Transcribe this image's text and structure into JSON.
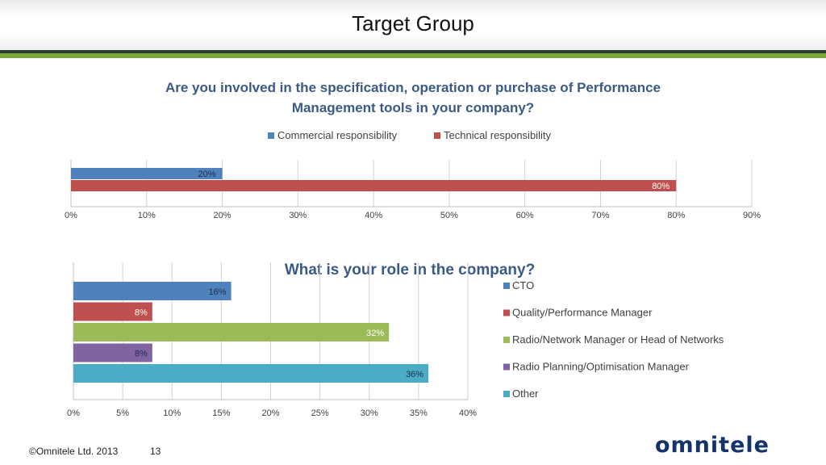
{
  "header": {
    "title": "Target Group"
  },
  "footer": {
    "copyright": "©Omnitele Ltd. 2013",
    "page_number": "13"
  },
  "logo": {
    "text": "omnitele",
    "color": "#14336b"
  },
  "chart_data": [
    {
      "type": "bar",
      "orientation": "horizontal",
      "title": "Are you involved in the specification, operation or purchase of Performance Management tools in your company?",
      "title_lines": [
        "Are you involved in the specification, operation or purchase of Performance",
        "Management tools in your company?"
      ],
      "series": [
        {
          "name": "Commercial responsibility",
          "values": [
            20
          ],
          "labels": [
            "20%"
          ],
          "color": "#4f81bd"
        },
        {
          "name": "Technical responsibility",
          "values": [
            80
          ],
          "labels": [
            "80%"
          ],
          "color": "#c0504d"
        }
      ],
      "xlim": [
        0,
        90
      ],
      "xticks": [
        "0%",
        "10%",
        "20%",
        "30%",
        "40%",
        "50%",
        "60%",
        "70%",
        "80%",
        "90%"
      ],
      "grid": true,
      "legend_position": "top"
    },
    {
      "type": "bar",
      "orientation": "horizontal",
      "title": "What is your role in the company?",
      "categories": [
        "CTO",
        "Quality/Performance Manager",
        "Radio/Network Manager or Head of Networks",
        "Radio Planning/Optimisation Manager",
        "Other"
      ],
      "values": [
        16,
        8,
        32,
        8,
        36
      ],
      "labels": [
        "16%",
        "8%",
        "32%",
        "8%",
        "36%"
      ],
      "colors": [
        "#4f81bd",
        "#c0504d",
        "#9bbb59",
        "#8064a2",
        "#4bacc6"
      ],
      "xlim": [
        0,
        40
      ],
      "xticks": [
        "0%",
        "5%",
        "10%",
        "15%",
        "20%",
        "25%",
        "30%",
        "35%",
        "40%"
      ],
      "grid": true,
      "legend_position": "right"
    }
  ]
}
